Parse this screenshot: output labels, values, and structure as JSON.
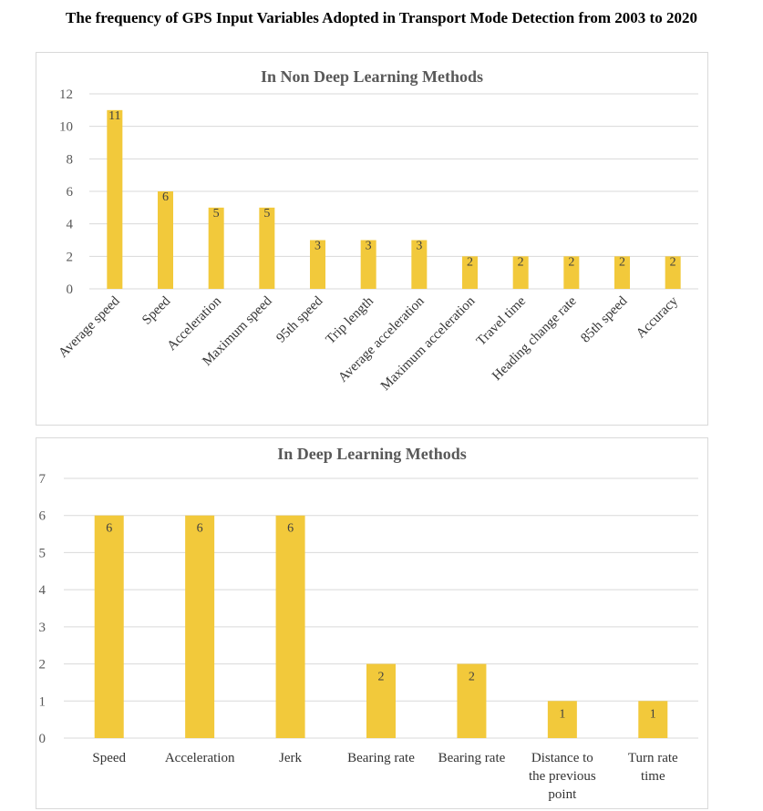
{
  "page_title": "The frequency of GPS Input Variables Adopted in Transport Mode Detection from 2003 to 2020",
  "colors": {
    "bar": "#f2c93b",
    "grid": "#d9d9d9",
    "text": "#595959"
  },
  "chart_data": [
    {
      "type": "bar",
      "title": "In Non Deep Learning Methods",
      "categories": [
        "Average speed",
        "Speed",
        "Acceleration",
        "Maximum speed",
        "95th speed",
        "Trip length",
        "Average acceleration",
        "Maximum acceleration",
        "Travel time",
        "Heading change rate",
        "85th speed",
        "Accuracy"
      ],
      "values": [
        11,
        6,
        5,
        5,
        3,
        3,
        3,
        2,
        2,
        2,
        2,
        2
      ],
      "ylim": [
        0,
        12
      ],
      "yticks": [
        0,
        2,
        4,
        6,
        8,
        10,
        12
      ],
      "grid": true,
      "data_labels": true,
      "xlabel_rotation": "rotated"
    },
    {
      "type": "bar",
      "title": "In Deep Learning Methods",
      "categories": [
        "Speed",
        "Acceleration",
        "Jerk",
        "Bearing rate",
        "Bearing rate",
        "Distance to the previous point",
        "Turn rate time"
      ],
      "category_lines": [
        [
          "Speed"
        ],
        [
          "Acceleration"
        ],
        [
          "Jerk"
        ],
        [
          "Bearing rate"
        ],
        [
          "Bearing rate"
        ],
        [
          "Distance to",
          "the previous",
          "point"
        ],
        [
          "Turn rate",
          "time"
        ]
      ],
      "values": [
        6,
        6,
        6,
        2,
        2,
        1,
        1
      ],
      "ylim": [
        0,
        7
      ],
      "yticks": [
        0,
        1,
        2,
        3,
        4,
        5,
        6,
        7
      ],
      "grid": true,
      "data_labels": true,
      "xlabel_rotation": "horizontal"
    }
  ]
}
